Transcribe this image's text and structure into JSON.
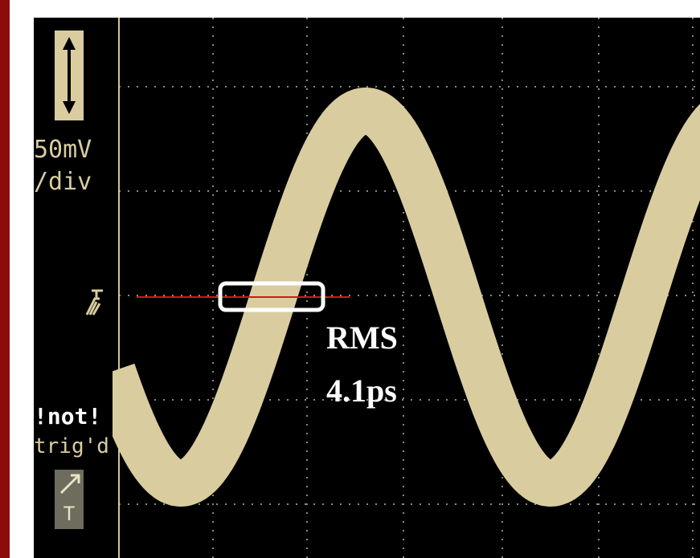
{
  "scale": {
    "amplitude": "50mV",
    "unit": "/div"
  },
  "trigger": {
    "status": "!not!",
    "state": "trig'd",
    "button": "T"
  },
  "annotation": {
    "label": "RMS",
    "value": "4.1ps"
  }
}
